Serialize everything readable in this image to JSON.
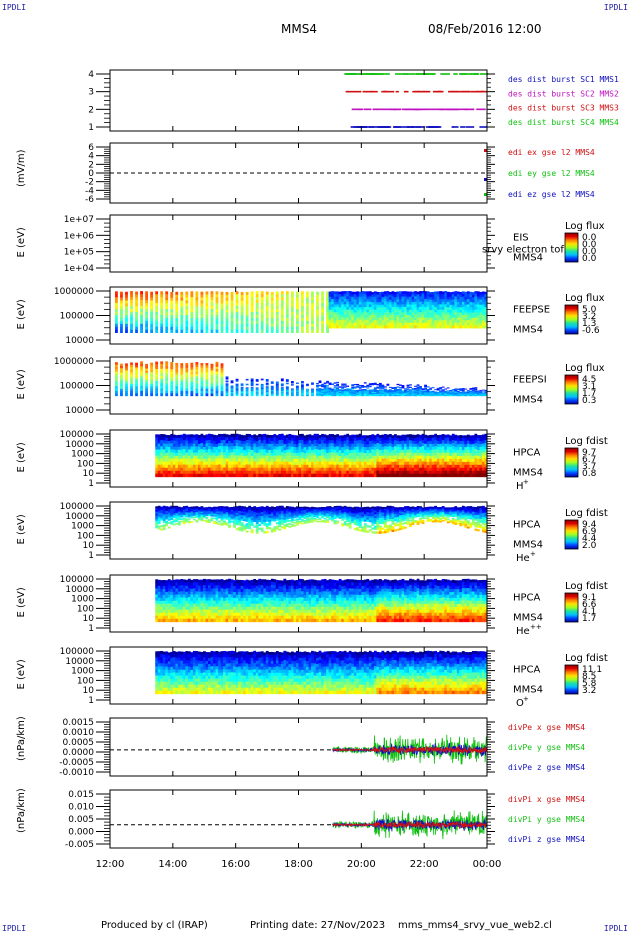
{
  "corner_tags": {
    "tl": "IPDLI",
    "tr": "IPDLI",
    "bl": "IPDLI",
    "br": "IPDLI"
  },
  "header": {
    "spacecraft": "MMS4",
    "datetime": "08/Feb/2016 12:00"
  },
  "footer": {
    "producer": "Produced by cl (IRAP)",
    "printing_date": "Printing date: 27/Nov/2023",
    "filename": "mms_mms4_srvy_vue_web2.cl"
  },
  "chart_data": [
    {
      "type": "line",
      "panel": "burst",
      "y_ticks": [
        "4",
        "3",
        "2",
        "1"
      ],
      "legend": [
        {
          "label": "des dist burst SC1 MMS1",
          "color": "#1010c0"
        },
        {
          "label": "des dist burst SC2 MMS2",
          "color": "#c010c0"
        },
        {
          "label": "des dist burst SC3 MMS3",
          "color": "#d01010"
        },
        {
          "label": "des dist burst SC4 MMS4",
          "color": "#10c010"
        }
      ]
    },
    {
      "type": "line",
      "panel": "edi",
      "ylabel": "(mV/m)",
      "y_ticks": [
        "6",
        "4",
        "2",
        "0",
        "-2",
        "-4",
        "-6"
      ],
      "ylim": [
        -6,
        6
      ],
      "legend": [
        {
          "label": "edi ex gse l2 MMS4",
          "color": "#d01010"
        },
        {
          "label": "edi ey gse l2 MMS4",
          "color": "#10c010"
        },
        {
          "label": "edi ez gse l2 MMS4",
          "color": "#1010c0"
        }
      ]
    },
    {
      "type": "heatmap",
      "panel": "eis",
      "ylabel": "E (eV)",
      "y_ticks": [
        "1e+07",
        "1e+06",
        "1e+05",
        "1e+04"
      ],
      "scale": "log",
      "label": "EIS",
      "sublabel": "MMS4",
      "overlay": "srvy electron tof",
      "cbar_title": "Log flux",
      "cbar_ticks": [
        "0.0",
        "0.0",
        "0.0",
        "0.0"
      ]
    },
    {
      "type": "heatmap",
      "panel": "feepse",
      "ylabel": "E (eV)",
      "y_ticks": [
        "1000000",
        "100000",
        "10000"
      ],
      "scale": "log",
      "label": "FEEPSE",
      "sublabel": "MMS4",
      "cbar_title": "Log flux",
      "cbar_ticks": [
        "5.0",
        "3.2",
        "1.3",
        "-0.6"
      ]
    },
    {
      "type": "heatmap",
      "panel": "feepsi",
      "ylabel": "E (eV)",
      "y_ticks": [
        "1000000",
        "100000",
        "10000"
      ],
      "scale": "log",
      "label": "FEEPSI",
      "sublabel": "MMS4",
      "cbar_title": "Log flux",
      "cbar_ticks": [
        "4.5",
        "3.1",
        "1.7",
        "0.3"
      ]
    },
    {
      "type": "heatmap",
      "panel": "hpca_h",
      "ylabel": "E (eV)",
      "y_ticks": [
        "100000",
        "10000",
        "1000",
        "100",
        "10",
        "1"
      ],
      "scale": "log",
      "label": "HPCA",
      "sublabel": "MMS4",
      "species": "H",
      "charge": "+",
      "cbar_title": "Log fdist",
      "cbar_ticks": [
        "9.7",
        "6.7",
        "3.7",
        "0.8"
      ]
    },
    {
      "type": "heatmap",
      "panel": "hpca_he",
      "ylabel": "E (eV)",
      "y_ticks": [
        "100000",
        "10000",
        "1000",
        "100",
        "10",
        "1"
      ],
      "scale": "log",
      "label": "HPCA",
      "sublabel": "MMS4",
      "species": "He",
      "charge": "+",
      "cbar_title": "Log fdist",
      "cbar_ticks": [
        "9.4",
        "6.9",
        "4.4",
        "2.0"
      ]
    },
    {
      "type": "heatmap",
      "panel": "hpca_hepp",
      "ylabel": "E (eV)",
      "y_ticks": [
        "100000",
        "10000",
        "1000",
        "100",
        "10",
        "1"
      ],
      "scale": "log",
      "label": "HPCA",
      "sublabel": "MMS4",
      "species": "He",
      "charge": "++",
      "cbar_title": "Log fdist",
      "cbar_ticks": [
        "9.1",
        "6.6",
        "4.1",
        "1.7"
      ]
    },
    {
      "type": "heatmap",
      "panel": "hpca_o",
      "ylabel": "E (eV)",
      "y_ticks": [
        "100000",
        "10000",
        "1000",
        "100",
        "10",
        "1"
      ],
      "scale": "log",
      "label": "HPCA",
      "sublabel": "MMS4",
      "species": "O",
      "charge": "+",
      "cbar_title": "Log fdist",
      "cbar_ticks": [
        "11.1",
        "8.5",
        "5.8",
        "3.2"
      ]
    },
    {
      "type": "line",
      "panel": "divpe",
      "ylabel": "(nPa/km)",
      "y_ticks": [
        "0.0015",
        "0.0010",
        "0.0005",
        "0.0000",
        "-0.0005",
        "-0.0010"
      ],
      "ylim": [
        -0.0013,
        0.0017
      ],
      "legend": [
        {
          "label": "divPe x gse MMS4",
          "color": "#d01010"
        },
        {
          "label": "divPe y gse MMS4",
          "color": "#10c010"
        },
        {
          "label": "divPe z gse MMS4",
          "color": "#1010c0"
        }
      ]
    },
    {
      "type": "line",
      "panel": "divpi",
      "ylabel": "(nPa/km)",
      "y_ticks": [
        "0.015",
        "0.010",
        "0.005",
        "0.000",
        "-0.005"
      ],
      "ylim": [
        -0.008,
        0.019
      ],
      "legend": [
        {
          "label": "divPi x gse MMS4",
          "color": "#d01010"
        },
        {
          "label": "divPi y gse MMS4",
          "color": "#10c010"
        },
        {
          "label": "divPi z gse MMS4",
          "color": "#1010c0"
        }
      ]
    }
  ],
  "x_axis": {
    "ticks": [
      "12:00",
      "14:00",
      "16:00",
      "18:00",
      "20:00",
      "22:00",
      "00:00"
    ]
  }
}
